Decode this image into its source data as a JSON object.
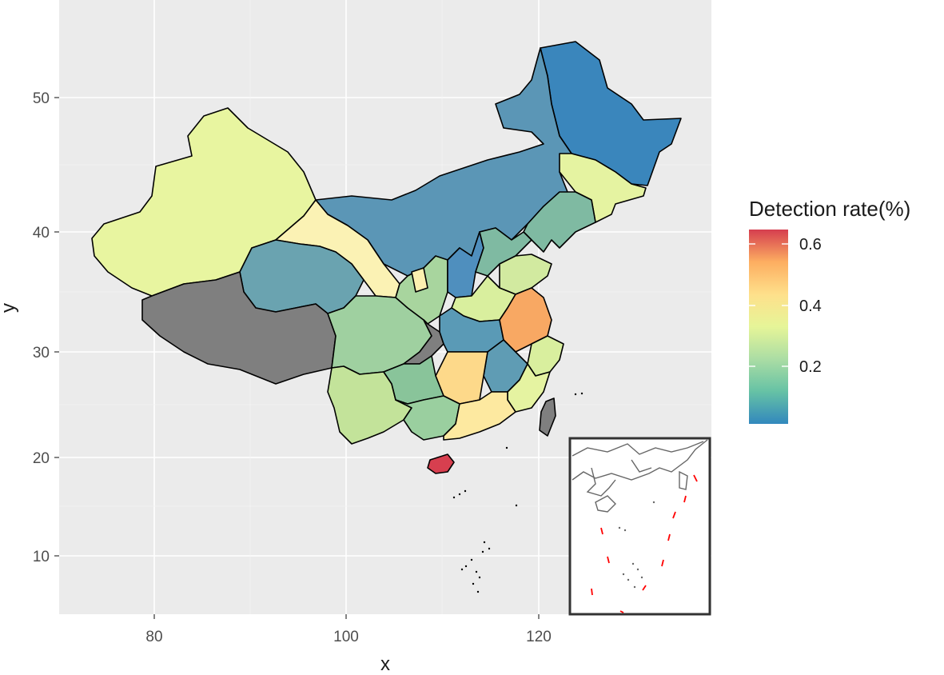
{
  "axes": {
    "x_title": "x",
    "y_title": "y",
    "x_ticks": [
      "80",
      "100",
      "120"
    ],
    "y_ticks": [
      "50",
      "40",
      "30",
      "20",
      "10"
    ]
  },
  "legend": {
    "title": "Detection rate(%)",
    "labels": [
      "0.6",
      "0.4",
      "0.2"
    ],
    "colors": [
      "#3288bd",
      "#66c2a5",
      "#abdda4",
      "#e6f598",
      "#fee08b",
      "#fdae61",
      "#d53e4f"
    ]
  },
  "colors": {
    "panel_background": "#ebebeb",
    "grid": "#ffffff",
    "no_data": "#808080",
    "border": "#000000"
  },
  "chart_data": {
    "type": "choropleth",
    "xlabel": "x",
    "ylabel": "y",
    "xlim": [
      70,
      138
    ],
    "ylim": [
      5,
      55
    ],
    "value_range": [
      0.0,
      0.65
    ],
    "regions": [
      {
        "fill": "#3a86bc"
      },
      {
        "fill": "#5b96b6"
      },
      {
        "fill": "#5896b8"
      },
      {
        "fill": "#e5f3a1"
      },
      {
        "fill": "#e8f5a0"
      },
      {
        "fill": "#fbf2b4"
      },
      {
        "fill": "#6aa3b0"
      },
      {
        "fill": "#7f7f7f"
      },
      {
        "fill": "#9fd0a0"
      },
      {
        "fill": "#c3e39a"
      },
      {
        "fill": "#4f8fbe"
      },
      {
        "fill": "#a8d59e"
      },
      {
        "fill": "#7f7f7f"
      },
      {
        "fill": "#5a9ab6"
      },
      {
        "fill": "#fdd98a"
      },
      {
        "fill": "#89c49a"
      },
      {
        "fill": "#9acf9f"
      },
      {
        "fill": "#fde9a0"
      },
      {
        "fill": "#f8a863"
      },
      {
        "fill": "#5f9cb4"
      },
      {
        "fill": "#d9ef9e"
      },
      {
        "fill": "#d73f4f"
      },
      {
        "fill": "#7f7f7f"
      },
      {
        "fill": "#d2eaa0"
      },
      {
        "fill": "#7fbaa2"
      },
      {
        "fill": "#fdf0b0"
      }
    ]
  }
}
